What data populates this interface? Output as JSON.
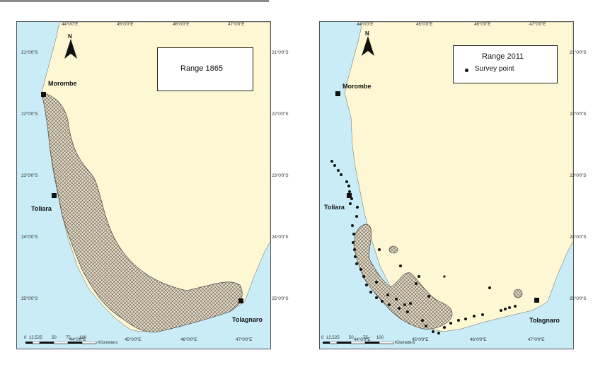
{
  "colors": {
    "sea": "#c9ecf6",
    "land": "#fdf7d4",
    "range_fill": "#e4dcc9",
    "range_hatch": "#5a5040",
    "marker": "#111111"
  },
  "maps": [
    {
      "legend": {
        "title": "Range 1865",
        "entries": []
      },
      "north_label": "N",
      "lon_ticks_top": [
        "44°0'0\"E",
        "45°0'0\"E",
        "46°0'0\"E",
        "47°0'0\"E"
      ],
      "lon_ticks_bottom": [
        "44°0'0\"E",
        "45°0'0\"E",
        "46°0'0\"E",
        "47°0'0\"E"
      ],
      "lat_ticks": [
        "21°0'0\"S",
        "22°0'0\"S",
        "23°0'0\"S",
        "24°0'0\"S",
        "25°0'0\"S"
      ],
      "cities": [
        {
          "name": "Morombe",
          "lon": 43.42,
          "lat": 21.73
        },
        {
          "name": "Toliara",
          "lon": 43.67,
          "lat": 23.35
        },
        {
          "name": "Tolagnaro",
          "lon": 46.98,
          "lat": 25.02
        }
      ],
      "scale": {
        "labels": [
          "0",
          "12.5",
          "25",
          "50",
          "75",
          "100"
        ],
        "unit": "Kilometers"
      }
    },
    {
      "legend": {
        "title": "Range 2011",
        "entries": [
          {
            "symbol": "dot",
            "label": "Survey point"
          }
        ]
      },
      "north_label": "N",
      "lon_ticks_top": [
        "44°0'0\"E",
        "45°0'0\"E",
        "46°0'0\"E",
        "47°0'0\"E"
      ],
      "lon_ticks_bottom": [
        "44°0'0\"E",
        "45°0'0\"E",
        "46°0'0\"E",
        "47°0'0\"E"
      ],
      "lat_ticks": [
        "21°0'0\"S",
        "22°0'0\"S",
        "23°0'0\"S",
        "24°0'0\"S",
        "25°0'0\"S"
      ],
      "cities": [
        {
          "name": "Morombe",
          "lon": 43.42,
          "lat": 21.73
        },
        {
          "name": "Toliara",
          "lon": 43.67,
          "lat": 23.35
        },
        {
          "name": "Tolagnaro",
          "lon": 46.98,
          "lat": 25.02
        }
      ],
      "scale": {
        "labels": [
          "0",
          "12.5",
          "25",
          "50",
          "75",
          "100"
        ],
        "unit": "Kilometers"
      }
    }
  ]
}
